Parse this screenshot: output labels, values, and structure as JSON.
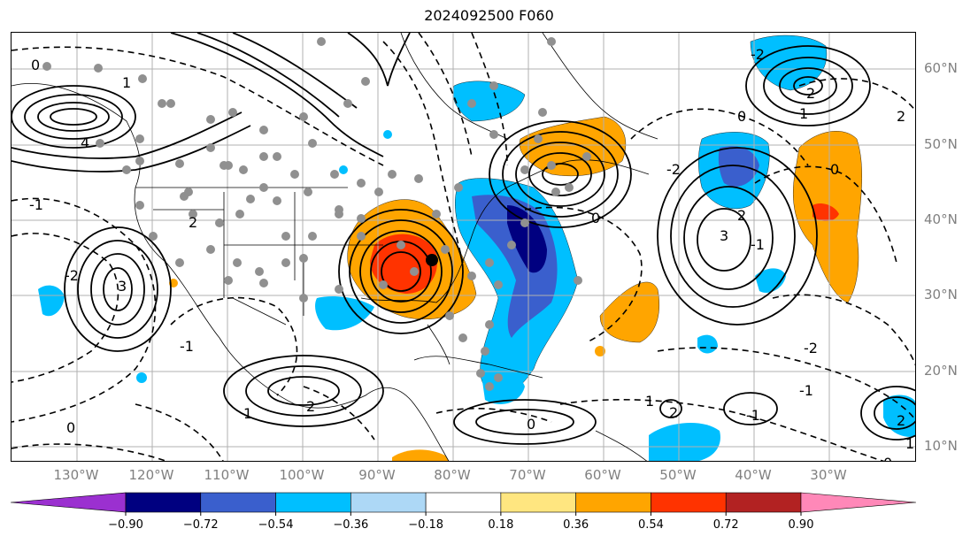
{
  "title": "2024092500 F060",
  "longitude_labels": [
    "130°W",
    "120°W",
    "110°W",
    "100°W",
    "90°W",
    "80°W",
    "70°W",
    "60°W",
    "50°W",
    "40°W",
    "30°W"
  ],
  "latitude_labels": [
    "60°N",
    "50°N",
    "40°N",
    "30°N",
    "20°N",
    "10°N"
  ],
  "colorbar": {
    "ticks": [
      "−0.90",
      "−0.72",
      "−0.54",
      "−0.36",
      "−0.18",
      "0.18",
      "0.36",
      "0.54",
      "0.72",
      "0.90"
    ],
    "colors": [
      "#9b30d0",
      "#000080",
      "#3a5fcd",
      "#00bfff",
      "#add8f6",
      "#ffffff",
      "#ffe680",
      "#ffa500",
      "#ff3300",
      "#b22222",
      "#ff88b8"
    ]
  },
  "contour_labels": [
    "0",
    "1",
    "2",
    "3",
    "4",
    "2",
    "1",
    "0",
    "-2",
    "-1",
    "-1",
    "0",
    "1",
    "2",
    "3",
    "2",
    "-1",
    "2",
    "-2",
    "1",
    "2",
    "0",
    "-1",
    "0",
    "2",
    "1",
    "0",
    "-1",
    "-2",
    "0",
    "-2"
  ],
  "colors": {
    "positive_fill": "#ffa500",
    "strong_positive_fill": "#ff3300",
    "negative_fill": "#00bfff",
    "strong_negative_fill": "#3a5fcd",
    "deep_negative_fill": "#000080",
    "gridline": "#b0b0b0",
    "axis_text": "#808080"
  }
}
